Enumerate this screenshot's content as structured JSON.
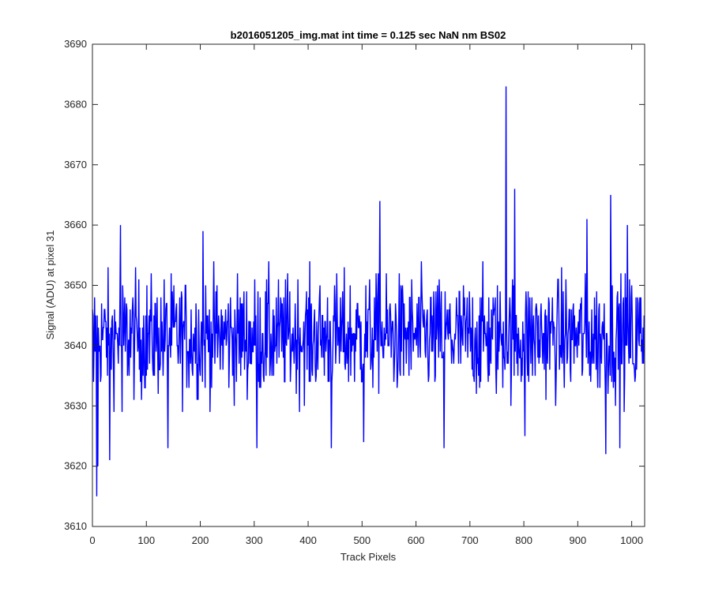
{
  "chart_data": {
    "type": "line",
    "title": "b2016051205_img.mat int time = 0.125 sec  NaN nm BS02",
    "xlabel": "Track Pixels",
    "ylabel": "Signal (ADU) at pixel 31",
    "xlim": [
      0,
      1024
    ],
    "ylim": [
      3610,
      3690
    ],
    "xticks": [
      0,
      100,
      200,
      300,
      400,
      500,
      600,
      700,
      800,
      900,
      1000
    ],
    "yticks": [
      3610,
      3620,
      3630,
      3640,
      3650,
      3660,
      3670,
      3680,
      3690
    ],
    "grid": false,
    "series": [
      {
        "color": "#0000ff",
        "n_points": 1024,
        "baseline": 3641.5,
        "noise_amplitude": 8,
        "notable_points": [
          {
            "x": 2,
            "y": 3634
          },
          {
            "x": 8,
            "y": 3615
          },
          {
            "x": 10,
            "y": 3620
          },
          {
            "x": 32,
            "y": 3621
          },
          {
            "x": 52,
            "y": 3660
          },
          {
            "x": 55,
            "y": 3629
          },
          {
            "x": 140,
            "y": 3623
          },
          {
            "x": 205,
            "y": 3659
          },
          {
            "x": 305,
            "y": 3623
          },
          {
            "x": 443,
            "y": 3623
          },
          {
            "x": 503,
            "y": 3624
          },
          {
            "x": 533,
            "y": 3664
          },
          {
            "x": 652,
            "y": 3623
          },
          {
            "x": 767,
            "y": 3683
          },
          {
            "x": 783,
            "y": 3666
          },
          {
            "x": 802,
            "y": 3625
          },
          {
            "x": 917,
            "y": 3661
          },
          {
            "x": 952,
            "y": 3622
          },
          {
            "x": 961,
            "y": 3665
          },
          {
            "x": 978,
            "y": 3623
          },
          {
            "x": 992,
            "y": 3660
          },
          {
            "x": 1005,
            "y": 3636
          },
          {
            "x": 1023,
            "y": 3645
          }
        ]
      }
    ]
  }
}
